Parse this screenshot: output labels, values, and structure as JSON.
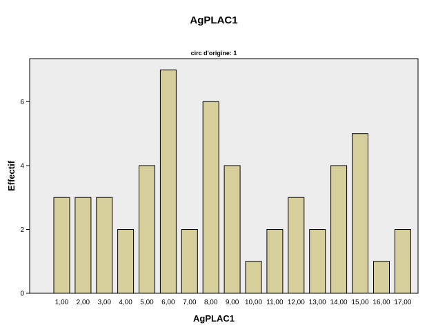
{
  "title": "AgPLAC1",
  "chart_data": {
    "type": "bar",
    "panel_title": "circ d'origine: 1",
    "categories": [
      "1,00",
      "2,00",
      "3,00",
      "4,00",
      "5,00",
      "6,00",
      "7,00",
      "8,00",
      "9,00",
      "10,00",
      "11,00",
      "12,00",
      "13,00",
      "14,00",
      "15,00",
      "16,00",
      "17,00"
    ],
    "values": [
      3,
      3,
      3,
      2,
      4,
      7,
      2,
      6,
      4,
      1,
      2,
      3,
      2,
      4,
      5,
      1,
      2
    ],
    "xlabel": "AgPLAC1",
    "ylabel": "Effectif",
    "ylim": [
      0,
      7.35
    ],
    "yticks": [
      "0",
      "2",
      "4",
      "6"
    ],
    "grid": false,
    "colors": {
      "bar": "#d6cf9c",
      "plot_background": "#ededed",
      "bar_edge": "#000000"
    }
  }
}
